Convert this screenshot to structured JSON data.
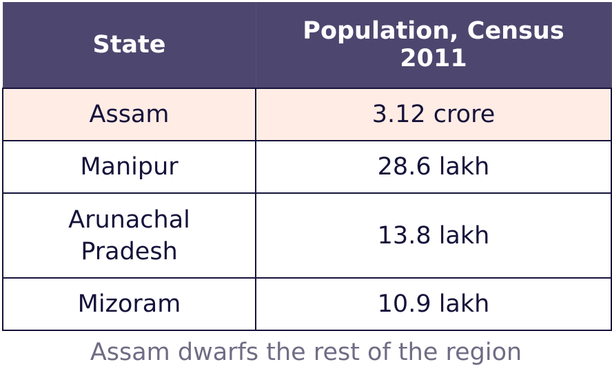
{
  "chart_data": {
    "type": "table",
    "columns": [
      "State",
      "Population, Census 2011"
    ],
    "rows": [
      {
        "state": "Assam",
        "population": "3.12 crore",
        "highlighted": true
      },
      {
        "state": "Manipur",
        "population": "28.6 lakh",
        "highlighted": false
      },
      {
        "state": "Arunachal Pradesh",
        "population": "13.8 lakh",
        "highlighted": false
      },
      {
        "state": "Mizoram",
        "population": "10.9 lakh",
        "highlighted": false
      }
    ],
    "caption": "Assam dwarfs the rest of the region"
  },
  "colors": {
    "header_bg": "#4d476f",
    "header_text": "#ffffff",
    "highlight_bg": "#ffece5",
    "body_text": "#15123a",
    "grid": "#15123a",
    "caption_text": "#6f6c84"
  }
}
